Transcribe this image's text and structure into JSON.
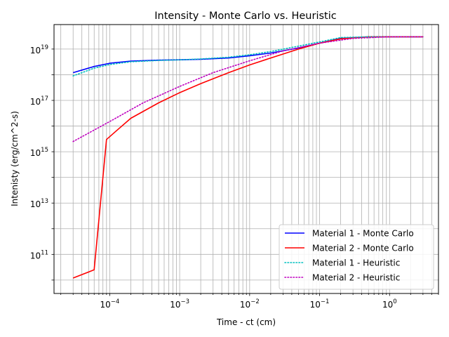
{
  "chart_data": {
    "type": "line",
    "title": "Intensity - Monte Carlo vs. Heuristic",
    "xlabel": "Time - ct (cm)",
    "ylabel": "Intenisty (erg/cm^2-s)",
    "xscale": "log",
    "yscale": "log",
    "xlim": [
      1.6e-05,
      5.0
    ],
    "ylim": [
      3000000000.0,
      9e+19
    ],
    "grid": "on (major and minor on x, major on y)",
    "legend_position": "lower-right",
    "x_ticks": [
      {
        "value": 0.0001,
        "base": "10",
        "exp": "−4"
      },
      {
        "value": 0.001,
        "base": "10",
        "exp": "−3"
      },
      {
        "value": 0.01,
        "base": "10",
        "exp": "−2"
      },
      {
        "value": 0.1,
        "base": "10",
        "exp": "−1"
      },
      {
        "value": 1,
        "base": "10",
        "exp": "0"
      }
    ],
    "y_ticks": [
      {
        "value": 100000000000.0,
        "base": "10",
        "exp": "11"
      },
      {
        "value": 10000000000000.0,
        "base": "10",
        "exp": "13"
      },
      {
        "value": 1000000000000000.0,
        "base": "10",
        "exp": "15"
      },
      {
        "value": 1e+17,
        "base": "10",
        "exp": "17"
      },
      {
        "value": 1e+19,
        "base": "10",
        "exp": "19"
      }
    ],
    "series": [
      {
        "name": "Material 1 - Monte Carlo",
        "color": "#0000ff",
        "dash": "solid",
        "x": [
          3e-05,
          6e-05,
          0.0001,
          0.0002,
          0.0005,
          0.001,
          0.002,
          0.005,
          0.01,
          0.02,
          0.05,
          0.1,
          0.2,
          0.5,
          1,
          3
        ],
        "y": [
          1.2e+18,
          2.1e+18,
          2.8e+18,
          3.4e+18,
          3.7e+18,
          3.8e+18,
          4e+18,
          4.5e+18,
          5.5e+18,
          7e+18,
          1.1e+19,
          1.7e+19,
          2.6e+19,
          3e+19,
          3e+19,
          3e+19
        ]
      },
      {
        "name": "Material 2 - Monte Carlo",
        "color": "#ff0000",
        "dash": "solid",
        "x": [
          3e-05,
          6e-05,
          9e-05,
          0.00012,
          0.0002,
          0.0005,
          0.001,
          0.002,
          0.005,
          0.01,
          0.02,
          0.05,
          0.1,
          0.2,
          0.5,
          1,
          3
        ],
        "y": [
          12000000000.0,
          25000000000.0,
          3000000000000000.0,
          6000000000000000.0,
          2e+16,
          8e+16,
          2e+17,
          4.5e+17,
          1.2e+18,
          2.4e+18,
          4.5e+18,
          1e+19,
          1.7e+19,
          2.5e+19,
          3e+19,
          3e+19,
          3e+19
        ]
      },
      {
        "name": "Material 1 - Heuristic",
        "color": "#00bfbf",
        "dash": "dotted",
        "x": [
          3e-05,
          6e-05,
          0.0001,
          0.0002,
          0.0005,
          0.001,
          0.002,
          0.005,
          0.01,
          0.02,
          0.05,
          0.1,
          0.2,
          0.5,
          1,
          3
        ],
        "y": [
          9e+17,
          1.8e+18,
          2.5e+18,
          3.2e+18,
          3.6e+18,
          3.8e+18,
          4.1e+18,
          4.8e+18,
          6e+18,
          8e+18,
          1.3e+19,
          1.9e+19,
          2.8e+19,
          3e+19,
          3e+19,
          3e+19
        ]
      },
      {
        "name": "Material 2 - Heuristic",
        "color": "#bf00bf",
        "dash": "dotted",
        "x": [
          3e-05,
          0.0001,
          0.0003,
          0.001,
          0.003,
          0.01,
          0.03,
          0.1,
          0.3,
          1,
          3
        ],
        "y": [
          2500000000000000.0,
          1.5e+16,
          8e+16,
          3.5e+17,
          1.2e+18,
          3.5e+18,
          8.5e+18,
          1.7e+19,
          2.6e+19,
          3e+19,
          3e+19
        ]
      }
    ]
  }
}
